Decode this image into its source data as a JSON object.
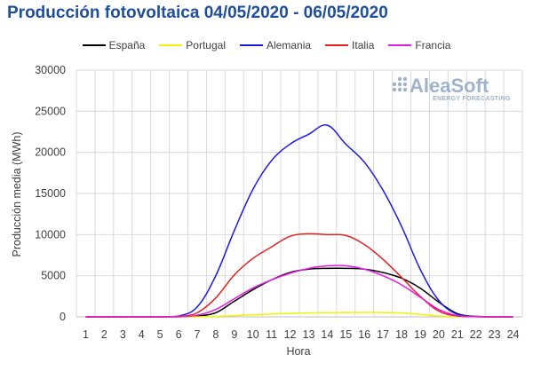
{
  "chart_data": {
    "type": "line",
    "title": "Producción fotovoltaica 04/05/2020 - 06/05/2020",
    "xlabel": "Hora",
    "ylabel": "Producción media (MWh)",
    "ylim": [
      0,
      30000
    ],
    "yticks": [
      "0",
      "5000",
      "10000",
      "15000",
      "20000",
      "25000",
      "30000"
    ],
    "grid": true,
    "legend_position": "top",
    "categories": [
      "1",
      "2",
      "3",
      "4",
      "5",
      "6",
      "7",
      "8",
      "9",
      "10",
      "11",
      "12",
      "13",
      "14",
      "15",
      "16",
      "17",
      "18",
      "19",
      "20",
      "21",
      "22",
      "23",
      "24"
    ],
    "series": [
      {
        "name": "España",
        "color": "#000000",
        "values": [
          0,
          0,
          0,
          0,
          0,
          0,
          100,
          500,
          1900,
          3300,
          4500,
          5400,
          5800,
          5900,
          5900,
          5800,
          5400,
          4700,
          3500,
          1800,
          400,
          50,
          0,
          0
        ]
      },
      {
        "name": "Portugal",
        "color": "#f2f200",
        "values": [
          0,
          0,
          0,
          0,
          0,
          0,
          0,
          50,
          150,
          250,
          350,
          420,
          470,
          500,
          520,
          540,
          520,
          470,
          300,
          100,
          20,
          0,
          0,
          0
        ]
      },
      {
        "name": "Alemania",
        "color": "#1a1ae6",
        "values": [
          0,
          0,
          0,
          0,
          0,
          100,
          1200,
          5000,
          10500,
          15500,
          19000,
          21000,
          22200,
          23300,
          21000,
          18800,
          15400,
          11000,
          5800,
          2000,
          300,
          50,
          0,
          0
        ]
      },
      {
        "name": "Italia",
        "color": "#e62020",
        "values": [
          0,
          0,
          0,
          0,
          0,
          50,
          500,
          2300,
          5100,
          7100,
          8500,
          9800,
          10100,
          10000,
          9900,
          8800,
          7000,
          4800,
          2500,
          700,
          100,
          20,
          0,
          0
        ]
      },
      {
        "name": "Francia",
        "color": "#e61ae6",
        "values": [
          0,
          0,
          0,
          0,
          0,
          30,
          200,
          900,
          2200,
          3500,
          4500,
          5300,
          5900,
          6200,
          6200,
          5800,
          5000,
          3900,
          2400,
          900,
          150,
          20,
          0,
          0
        ]
      }
    ]
  },
  "logo": {
    "main": "AleaSoft",
    "sub": "ENERGY FORECASTING"
  }
}
